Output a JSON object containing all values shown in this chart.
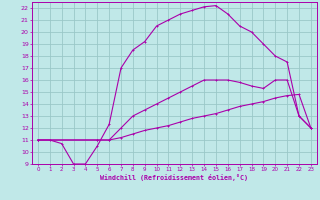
{
  "xlabel": "Windchill (Refroidissement éolien,°C)",
  "xlim": [
    -0.5,
    23.5
  ],
  "ylim": [
    9,
    22.5
  ],
  "xticks": [
    0,
    1,
    2,
    3,
    4,
    5,
    6,
    7,
    8,
    9,
    10,
    11,
    12,
    13,
    14,
    15,
    16,
    17,
    18,
    19,
    20,
    21,
    22,
    23
  ],
  "yticks": [
    9,
    10,
    11,
    12,
    13,
    14,
    15,
    16,
    17,
    18,
    19,
    20,
    21,
    22
  ],
  "bg_color": "#c0e8e8",
  "line_color": "#aa00aa",
  "grid_color": "#9ac8c8",
  "line1_x": [
    0,
    1,
    2,
    3,
    4,
    5,
    6,
    7,
    8,
    9,
    10,
    11,
    12,
    13,
    14,
    15,
    16,
    17,
    18,
    19,
    20,
    21,
    22,
    23
  ],
  "line1_y": [
    11,
    11,
    10.7,
    9,
    9,
    10.5,
    12.3,
    17,
    18.5,
    19.2,
    20.5,
    21,
    21.5,
    21.8,
    22.1,
    22.2,
    21.5,
    20.5,
    20,
    19,
    18,
    17.5,
    13,
    12
  ],
  "line2_x": [
    0,
    5,
    6,
    7,
    8,
    9,
    10,
    11,
    12,
    13,
    14,
    15,
    16,
    17,
    18,
    19,
    20,
    21,
    22,
    23
  ],
  "line2_y": [
    11,
    11,
    11,
    12,
    13,
    13.5,
    14,
    14.5,
    15,
    15.5,
    16,
    16,
    16,
    15.8,
    15.5,
    15.3,
    16,
    16,
    13,
    12
  ],
  "line3_x": [
    0,
    5,
    6,
    7,
    8,
    9,
    10,
    11,
    12,
    13,
    14,
    15,
    16,
    17,
    18,
    19,
    20,
    21,
    22,
    23
  ],
  "line3_y": [
    11,
    11,
    11,
    11.2,
    11.5,
    11.8,
    12,
    12.2,
    12.5,
    12.8,
    13,
    13.2,
    13.5,
    13.8,
    14,
    14.2,
    14.5,
    14.7,
    14.8,
    12
  ]
}
